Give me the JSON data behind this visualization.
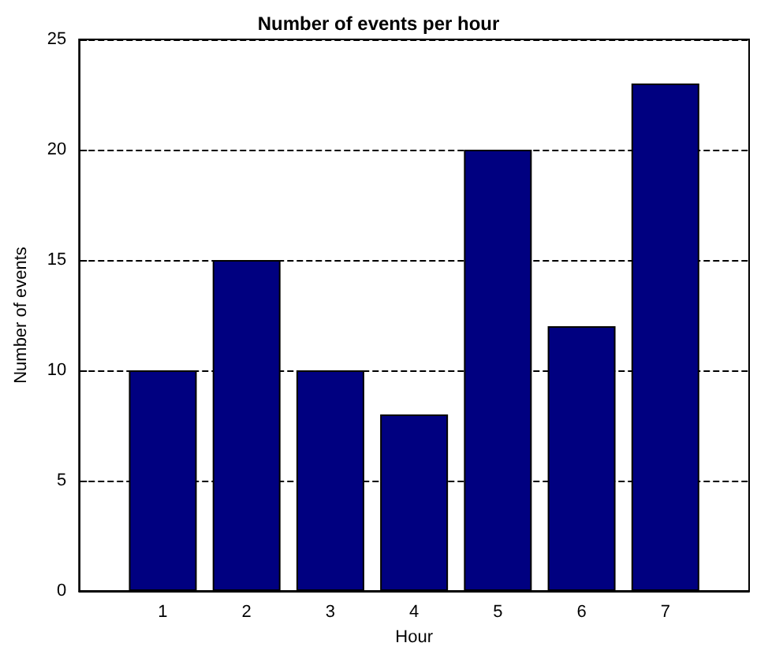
{
  "chart_data": {
    "type": "bar",
    "title": "Number of events per hour",
    "xlabel": "Hour",
    "ylabel": "Number of events",
    "x": [
      1,
      2,
      3,
      4,
      5,
      6,
      7
    ],
    "values": [
      10,
      15,
      10,
      8,
      20,
      12,
      23
    ],
    "color": "#000080",
    "xlim": [
      0,
      8
    ],
    "xticks": [
      1,
      2,
      3,
      4,
      5,
      6,
      7
    ],
    "ylim": [
      0,
      25
    ],
    "yticks": [
      0,
      5,
      10,
      15,
      20,
      25
    ],
    "grid": "y"
  }
}
